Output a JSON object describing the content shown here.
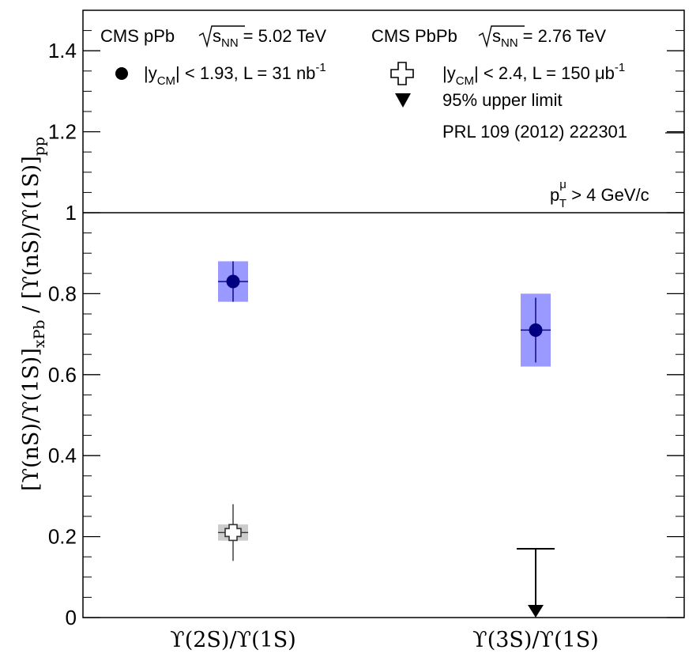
{
  "chart_data": {
    "type": "scatter",
    "ylabel": "[ϒ(nS)/ϒ(1S)]xPb / [ϒ(nS)/ϒ(1S)]pp",
    "ylabel_parts": {
      "main": "[ϒ(nS)/ϒ(1S)]",
      "sub1": "xPb",
      "mid": " / [ϒ(nS)/ϒ(1S)]",
      "sub2": "pp"
    },
    "ylim": [
      0,
      1.5
    ],
    "yticks": [
      "0",
      "0.2",
      "0.4",
      "0.6",
      "0.8",
      "1",
      "1.2",
      "1.4"
    ],
    "ytick_values": [
      0,
      0.2,
      0.4,
      0.6,
      0.8,
      1.0,
      1.2,
      1.4
    ],
    "categories": [
      "ϒ(2S)/ϒ(1S)",
      "ϒ(3S)/ϒ(1S)"
    ],
    "reference_line": 1.0,
    "series": [
      {
        "name": "CMS pPb, |yCM| < 1.93, L = 31 nb-1",
        "marker": "filled-circle",
        "color": "#000080",
        "box_color": "#9999ff",
        "points": [
          {
            "category": 0,
            "y": 0.83,
            "stat_lo": 0.78,
            "stat_hi": 0.88,
            "syst_lo": 0.78,
            "syst_hi": 0.88
          },
          {
            "category": 1,
            "y": 0.71,
            "stat_lo": 0.63,
            "stat_hi": 0.79,
            "syst_lo": 0.62,
            "syst_hi": 0.8
          }
        ]
      },
      {
        "name": "CMS PbPb, |yCM| < 2.4, L = 150 μb-1",
        "marker": "open-cross",
        "color": "#333333",
        "box_color": "#cccccc",
        "points": [
          {
            "category": 0,
            "y": 0.21,
            "stat_lo": 0.14,
            "stat_hi": 0.28,
            "syst_lo": 0.19,
            "syst_hi": 0.23
          }
        ],
        "upper_limits": [
          {
            "category": 1,
            "y": 0.17
          }
        ]
      }
    ],
    "legend": {
      "ppb_title": "CMS pPb",
      "ppb_energy": "= 5.02 TeV",
      "pbpb_title": "CMS PbPb",
      "pbpb_energy": "= 2.76 TeV",
      "sqrt_s": "s",
      "sqrt_sub": "NN",
      "ppb_rap_a": "|y",
      "ppb_rap_sub": "CM",
      "ppb_rap_b": "| < 1.93, L = 31 nb",
      "ppb_rap_sup": "-1",
      "pbpb_rap_a": "|y",
      "pbpb_rap_sub": "CM",
      "pbpb_rap_b": "| < 2.4, L = 150 μb",
      "pbpb_rap_sup": "-1",
      "upper_limit": "95% upper limit",
      "reference": "PRL 109 (2012) 222301",
      "pt_a": "p",
      "pt_sup": "μ",
      "pt_sub": "T",
      "pt_b": " > 4 GeV/c"
    }
  }
}
